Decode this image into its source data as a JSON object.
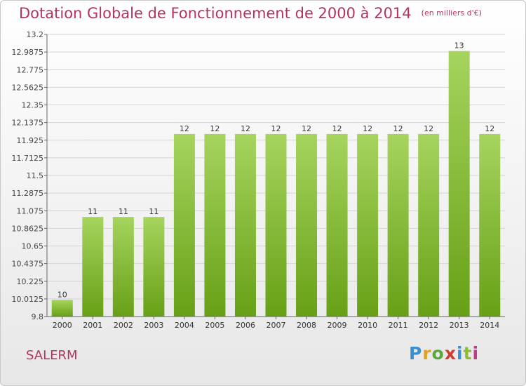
{
  "title": "Dotation Globale de Fonctionnement de 2000 à 2014",
  "unit_label": "(en milliers d'€)",
  "commune": "SALERM",
  "logo": {
    "letters": [
      "P",
      "r",
      "o",
      "x",
      "i",
      "t",
      "i"
    ],
    "colors": [
      "#3a8fd0",
      "#e2a021",
      "#58a93a",
      "#d13a2f",
      "#3a8fd0",
      "#8fbd32",
      "#c03a8c"
    ]
  },
  "colors": {
    "title": "#b5325f",
    "bar_light": "#a6d45e",
    "bar_dark": "#67a016",
    "grid": "#d4d4d4",
    "axis": "#666666"
  },
  "chart_data": {
    "type": "bar",
    "title": "Dotation Globale de Fonctionnement de 2000 à 2014",
    "unit": "(en milliers d'€)",
    "categories": [
      "2000",
      "2001",
      "2002",
      "2003",
      "2004",
      "2005",
      "2006",
      "2007",
      "2008",
      "2009",
      "2010",
      "2011",
      "2012",
      "2013",
      "2014"
    ],
    "values": [
      10,
      11,
      11,
      11,
      12,
      12,
      12,
      12,
      12,
      12,
      12,
      12,
      12,
      13,
      12
    ],
    "plot_values": [
      10,
      11,
      11,
      11,
      12,
      12,
      12,
      12,
      12,
      12,
      12,
      12,
      12,
      13,
      12
    ],
    "data_labels": [
      "10",
      "11",
      "11",
      "11",
      "12",
      "12",
      "12",
      "12",
      "12",
      "12",
      "12",
      "12",
      "12",
      "13",
      "12"
    ],
    "ylim": [
      9.8,
      13.2
    ],
    "yticks": [
      9.8,
      10.0125,
      10.225,
      10.4375,
      10.65,
      10.8625,
      11.075,
      11.2875,
      11.5,
      11.7125,
      11.925,
      12.1375,
      12.35,
      12.5625,
      12.775,
      12.9875,
      13.2
    ],
    "ytick_labels": [
      "9.8",
      "10.0125",
      "10.225",
      "10.4375",
      "10.65",
      "10.8625",
      "11.075",
      "11.2875",
      "11.5",
      "11.7125",
      "11.925",
      "12.1375",
      "12.35",
      "12.5625",
      "12.775",
      "12.9875",
      "13.2"
    ],
    "grid": true,
    "xlabel": "",
    "ylabel": ""
  }
}
